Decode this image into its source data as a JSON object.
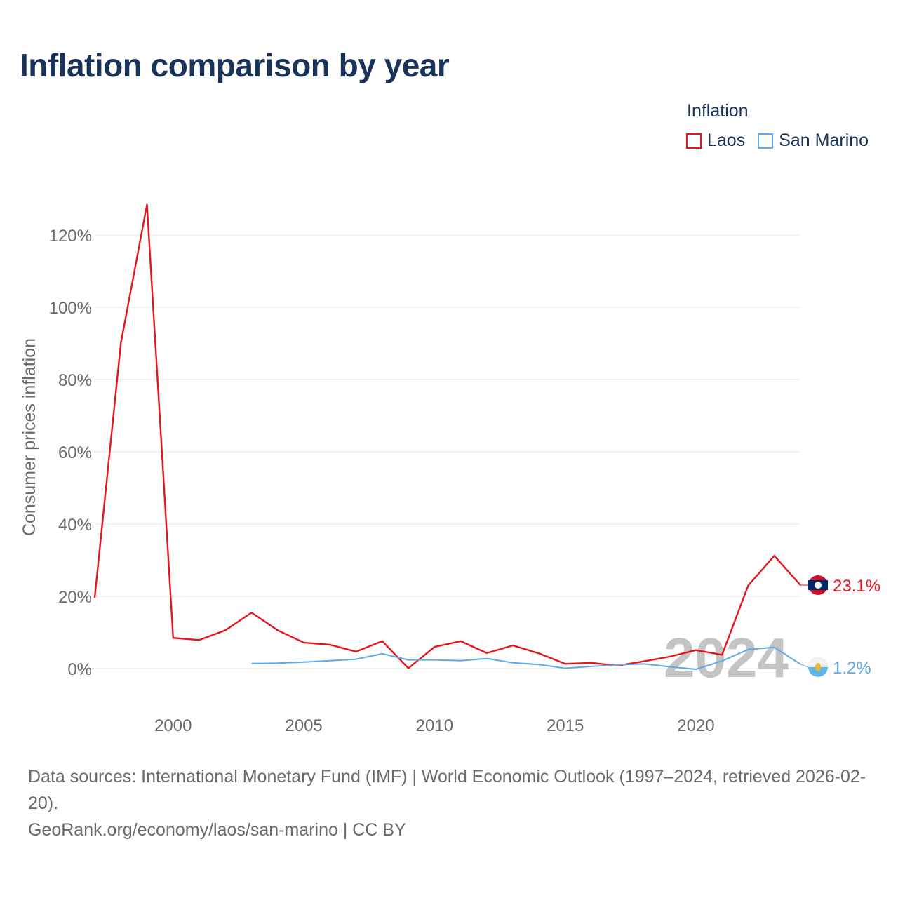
{
  "title": "Inflation comparison by year",
  "legend": {
    "title": "Inflation",
    "items": [
      {
        "label": "Laos",
        "color": "#e8141c"
      },
      {
        "label": "San Marino",
        "color": "#5da9e9"
      }
    ]
  },
  "footer": {
    "source": "Data sources: International Monetary Fund (IMF) | World Economic Outlook (1997–2024, retrieved 2026-02-20).",
    "credit": "GeoRank.org/economy/laos/san-marino | CC BY"
  },
  "chart_data": {
    "type": "line",
    "title": "Inflation comparison by year",
    "xlabel": "",
    "ylabel": "Consumer prices inflation",
    "xlim": [
      1997,
      2024
    ],
    "ylim": [
      -10,
      130
    ],
    "y_ticks": [
      0,
      20,
      40,
      60,
      80,
      100,
      120
    ],
    "y_tick_labels": [
      "0%",
      "20%",
      "40%",
      "60%",
      "80%",
      "100%",
      "120%"
    ],
    "x_ticks": [
      2000,
      2005,
      2010,
      2015,
      2020
    ],
    "x_tick_labels": [
      "2000",
      "2005",
      "2010",
      "2015",
      "2020"
    ],
    "grid": true,
    "watermark_year": "2024",
    "series": [
      {
        "name": "Laos",
        "color": "#e8141c",
        "end_label": "23.1%",
        "flag": "laos-flag",
        "x": [
          1997,
          1998,
          1999,
          2000,
          2001,
          2002,
          2003,
          2004,
          2005,
          2006,
          2007,
          2008,
          2009,
          2010,
          2011,
          2012,
          2013,
          2014,
          2015,
          2016,
          2017,
          2018,
          2019,
          2020,
          2021,
          2022,
          2023,
          2024
        ],
        "values": [
          19.6,
          90.1,
          128.4,
          8.5,
          7.9,
          10.6,
          15.5,
          10.6,
          7.2,
          6.6,
          4.7,
          7.6,
          0.1,
          6.0,
          7.6,
          4.3,
          6.4,
          4.2,
          1.3,
          1.6,
          0.8,
          2.0,
          3.3,
          5.1,
          3.8,
          23.0,
          31.2,
          23.1
        ]
      },
      {
        "name": "San Marino",
        "color": "#5da9e9",
        "end_label": "1.2%",
        "flag": "san-marino-flag",
        "x": [
          2003,
          2004,
          2005,
          2006,
          2007,
          2008,
          2009,
          2010,
          2011,
          2012,
          2013,
          2014,
          2015,
          2016,
          2017,
          2018,
          2019,
          2020,
          2021,
          2022,
          2023,
          2024
        ],
        "values": [
          1.4,
          1.5,
          1.8,
          2.2,
          2.6,
          4.1,
          2.4,
          2.4,
          2.2,
          2.8,
          1.6,
          1.1,
          0.1,
          0.6,
          1.0,
          1.3,
          0.5,
          -0.2,
          2.1,
          5.3,
          5.9,
          1.2
        ]
      }
    ]
  }
}
